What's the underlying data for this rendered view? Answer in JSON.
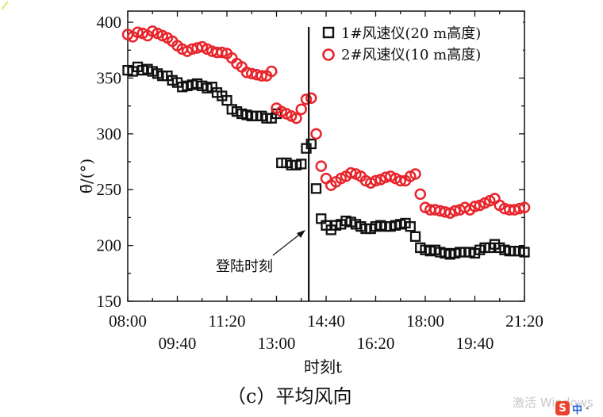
{
  "chart_data": {
    "type": "scatter",
    "title": "",
    "caption": "（c）平均风向",
    "xlabel": "时刻t",
    "ylabel": "θ̄/(°)",
    "ylim": [
      150,
      410
    ],
    "xlim_minutes": [
      480,
      1280
    ],
    "yticks": [
      150,
      200,
      250,
      300,
      350,
      400
    ],
    "xticks_top_row": [
      {
        "label": "08:00",
        "minutes": 480
      },
      {
        "label": "11:20",
        "minutes": 680
      },
      {
        "label": "14:40",
        "minutes": 880
      },
      {
        "label": "18:00",
        "minutes": 1080
      },
      {
        "label": "21:20",
        "minutes": 1280
      }
    ],
    "xticks_bottom_row": [
      {
        "label": "09:40",
        "minutes": 580
      },
      {
        "label": "13:00",
        "minutes": 780
      },
      {
        "label": "16:20",
        "minutes": 980
      },
      {
        "label": "19:40",
        "minutes": 1180
      }
    ],
    "legend": {
      "position": "top-right",
      "entries": [
        {
          "name": "1#风速仪(20 m高度)",
          "marker": "square",
          "color": "#111111"
        },
        {
          "name": "2#风速仪(10 m高度)",
          "marker": "circle",
          "color": "#e8242b"
        }
      ]
    },
    "annotation": {
      "text": "登陆时刻",
      "vline_minutes": 845
    },
    "series": [
      {
        "name": "1#风速仪(20 m高度)",
        "marker": "square",
        "color": "#111111",
        "x": [
          480,
          490,
          500,
          510,
          520,
          530,
          540,
          550,
          560,
          570,
          580,
          590,
          600,
          610,
          620,
          630,
          640,
          650,
          660,
          670,
          680,
          690,
          700,
          710,
          720,
          730,
          740,
          750,
          760,
          770,
          780,
          790,
          800,
          810,
          820,
          830,
          840,
          850,
          860,
          870,
          880,
          890,
          900,
          910,
          920,
          930,
          940,
          950,
          960,
          970,
          980,
          990,
          1000,
          1010,
          1020,
          1030,
          1040,
          1050,
          1060,
          1070,
          1080,
          1090,
          1100,
          1110,
          1120,
          1130,
          1140,
          1150,
          1160,
          1170,
          1180,
          1190,
          1200,
          1210,
          1220,
          1230,
          1240,
          1250,
          1260,
          1270,
          1280
        ],
        "y": [
          357,
          356,
          360,
          357,
          358,
          356,
          354,
          352,
          352,
          348,
          346,
          342,
          343,
          344,
          345,
          343,
          341,
          342,
          337,
          334,
          330,
          322,
          320,
          318,
          317,
          316,
          316,
          316,
          314,
          314,
          318,
          274,
          274,
          272,
          272,
          273,
          287,
          291,
          251,
          224,
          218,
          214,
          218,
          219,
          222,
          221,
          219,
          217,
          215,
          215,
          217,
          218,
          217,
          217,
          218,
          219,
          220,
          217,
          208,
          198,
          196,
          195,
          196,
          194,
          193,
          192,
          193,
          194,
          194,
          194,
          193,
          196,
          198,
          198,
          201,
          198,
          196,
          195,
          195,
          195,
          194
        ]
      },
      {
        "name": "2#风速仪(10 m高度)",
        "marker": "circle",
        "color": "#e8242b",
        "x": [
          480,
          490,
          500,
          510,
          520,
          530,
          540,
          550,
          560,
          570,
          580,
          590,
          600,
          610,
          620,
          630,
          640,
          650,
          660,
          670,
          680,
          690,
          700,
          710,
          720,
          730,
          740,
          750,
          760,
          770,
          780,
          790,
          800,
          810,
          820,
          830,
          840,
          850,
          860,
          870,
          880,
          890,
          900,
          910,
          920,
          930,
          940,
          950,
          960,
          970,
          980,
          990,
          1000,
          1010,
          1020,
          1030,
          1040,
          1050,
          1060,
          1070,
          1080,
          1090,
          1100,
          1110,
          1120,
          1130,
          1140,
          1150,
          1160,
          1170,
          1180,
          1190,
          1200,
          1210,
          1220,
          1230,
          1240,
          1250,
          1260,
          1270,
          1280
        ],
        "y": [
          389,
          387,
          391,
          390,
          388,
          392,
          390,
          388,
          386,
          383,
          379,
          376,
          374,
          376,
          377,
          378,
          376,
          374,
          373,
          373,
          372,
          368,
          363,
          360,
          355,
          354,
          353,
          352,
          352,
          356,
          323,
          320,
          318,
          316,
          314,
          322,
          331,
          332,
          300,
          271,
          260,
          254,
          257,
          260,
          262,
          265,
          264,
          262,
          258,
          256,
          258,
          259,
          261,
          262,
          260,
          258,
          258,
          262,
          264,
          246,
          234,
          232,
          232,
          231,
          230,
          229,
          231,
          232,
          234,
          232,
          235,
          236,
          238,
          240,
          242,
          236,
          233,
          232,
          232,
          233,
          234
        ]
      }
    ]
  },
  "watermark": {
    "text": "激活 Windows"
  },
  "ime": {
    "logo": "S",
    "lang": "中",
    "extra": "•"
  }
}
